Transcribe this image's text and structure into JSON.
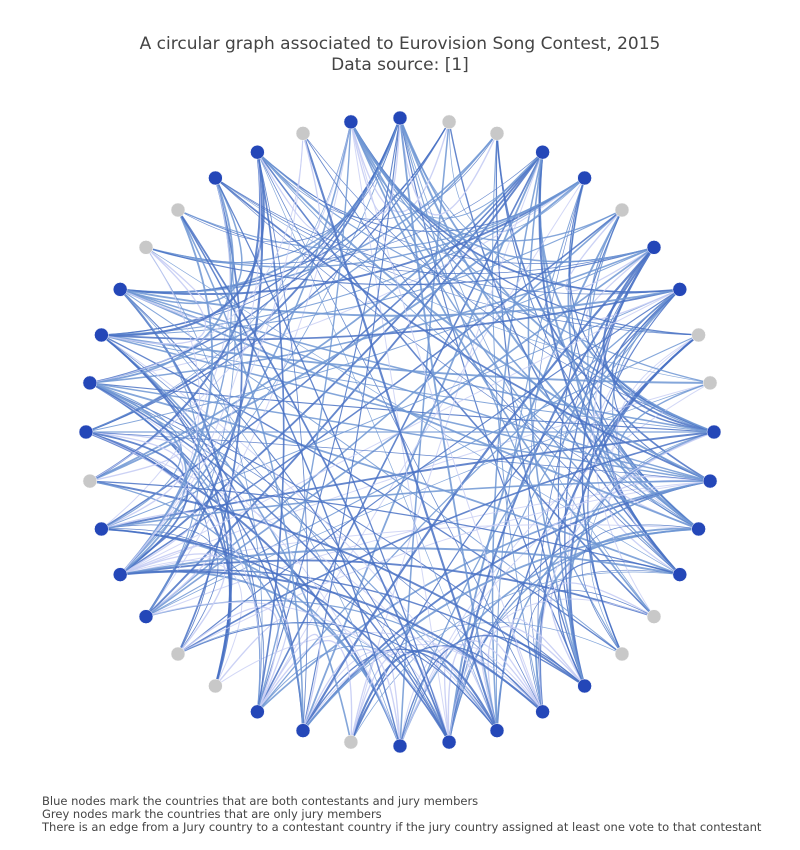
{
  "title": {
    "line1": "A circular graph associated to Eurovision Song Contest, 2015",
    "line2": "Data source: [1]"
  },
  "notes": [
    "Blue nodes mark the countries that are both contestants and jury members",
    " Grey nodes mark the countries that are only jury members",
    " There is an edge from a Jury country to a contestant country if the jury country assigned at least one vote to that contestant"
  ],
  "colors": {
    "contestant_node": "#2447b8",
    "jury_only_node": "#c8c8c8",
    "edge_strong": "#4a72c4",
    "edge_medium": "#6f96d4",
    "edge_light": "#c7cdf4"
  },
  "nodes": [
    {
      "role": "contestant"
    },
    {
      "role": "jury"
    },
    {
      "role": "jury"
    },
    {
      "role": "contestant"
    },
    {
      "role": "contestant"
    },
    {
      "role": "jury"
    },
    {
      "role": "contestant"
    },
    {
      "role": "contestant"
    },
    {
      "role": "jury"
    },
    {
      "role": "jury"
    },
    {
      "role": "contestant"
    },
    {
      "role": "contestant"
    },
    {
      "role": "contestant"
    },
    {
      "role": "contestant"
    },
    {
      "role": "jury"
    },
    {
      "role": "jury"
    },
    {
      "role": "contestant"
    },
    {
      "role": "contestant"
    },
    {
      "role": "contestant"
    },
    {
      "role": "contestant"
    },
    {
      "role": "contestant"
    },
    {
      "role": "jury"
    },
    {
      "role": "contestant"
    },
    {
      "role": "contestant"
    },
    {
      "role": "jury"
    },
    {
      "role": "jury"
    },
    {
      "role": "contestant"
    },
    {
      "role": "contestant"
    },
    {
      "role": "contestant"
    },
    {
      "role": "jury"
    },
    {
      "role": "contestant"
    },
    {
      "role": "contestant"
    },
    {
      "role": "contestant"
    },
    {
      "role": "contestant"
    },
    {
      "role": "jury"
    },
    {
      "role": "jury"
    },
    {
      "role": "contestant"
    },
    {
      "role": "contestant"
    },
    {
      "role": "jury"
    },
    {
      "role": "contestant"
    }
  ]
}
